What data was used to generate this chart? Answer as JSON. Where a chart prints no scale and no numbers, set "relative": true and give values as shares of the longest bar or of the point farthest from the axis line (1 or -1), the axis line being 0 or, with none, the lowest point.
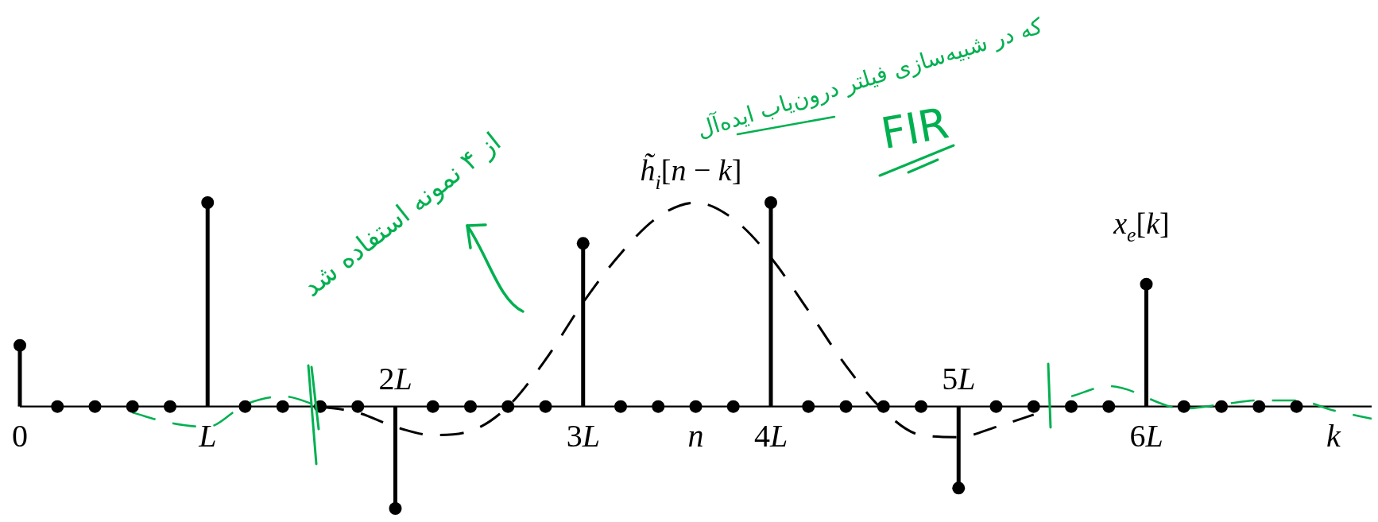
{
  "chart_data": {
    "type": "lollipop",
    "relative": true,
    "xlabel": "k",
    "tick_labels": "x",
    "marker": "circle",
    "categories": [
      "0",
      null,
      null,
      null,
      null,
      "L",
      null,
      null,
      null,
      null,
      "2L",
      null,
      null,
      null,
      null,
      "3L",
      null,
      null,
      "n",
      null,
      "4L",
      null,
      null,
      null,
      null,
      "5L",
      null,
      null,
      null,
      null,
      "6L",
      null,
      null,
      null,
      null,
      null,
      null
    ],
    "series": [
      {
        "name": "x$_{e}$[k]",
        "color": "#000000",
        "values": [
          0.3,
          0,
          0,
          0,
          0,
          1,
          0,
          0,
          0,
          0,
          -0.5,
          0,
          0,
          0,
          0,
          0.8,
          0,
          0,
          0,
          0,
          1,
          0,
          0,
          0,
          0,
          -0.4,
          0,
          0,
          0,
          0,
          0.6,
          0,
          0,
          0,
          0,
          null,
          null
        ]
      },
      {
        "name": "h̃$_{i}$[n − k]",
        "type": "line",
        "line_style": "dashed",
        "marker": "none",
        "color": "#000000",
        "values": [
          null,
          null,
          null,
          null,
          null,
          null,
          null,
          null,
          0,
          -0.03,
          -0.1,
          -0.14,
          -0.12,
          0,
          0.23,
          0.51,
          0.75,
          0.93,
          1,
          0.92,
          0.73,
          0.47,
          0.2,
          -0.02,
          -0.14,
          -0.15,
          -0.1,
          -0.04,
          null,
          null,
          null,
          null,
          null,
          null,
          null,
          null,
          null
        ]
      },
      {
        "type": "line",
        "line_style": "dashed",
        "marker": "none",
        "color": "#00b050",
        "values": [
          null,
          null,
          null,
          -0.03,
          -0.08,
          -0.1,
          0.01,
          0.05,
          0,
          null,
          null,
          null,
          null,
          null,
          null,
          null,
          null,
          null,
          null,
          null,
          null,
          null,
          null,
          null,
          null,
          null,
          null,
          null,
          null,
          null,
          null,
          null,
          null,
          null,
          null,
          null,
          null
        ]
      },
      {
        "type": "line",
        "line_style": "dashed",
        "marker": "none",
        "color": "#00b050",
        "values": [
          null,
          null,
          null,
          null,
          null,
          null,
          null,
          null,
          null,
          null,
          null,
          null,
          null,
          null,
          null,
          null,
          null,
          null,
          null,
          null,
          null,
          null,
          null,
          null,
          null,
          null,
          null,
          null,
          0.05,
          0.1,
          null,
          -0.01,
          0.01,
          0.03,
          0.03,
          -0.02,
          -0.06
        ]
      }
    ],
    "annotations": [
      "که در شبیه‌سازی فیلتر درون‌یاب ایده‌آل",
      "FIR",
      "از ۴ نمونه استفاده شد"
    ]
  }
}
